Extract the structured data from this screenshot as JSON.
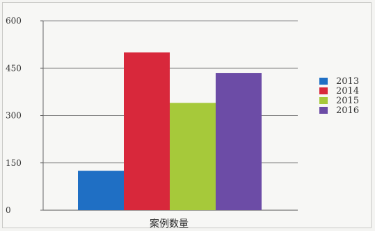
{
  "chart_data": {
    "type": "bar",
    "categories": [
      "案例数量"
    ],
    "series": [
      {
        "name": "2013",
        "values": [
          125
        ],
        "color": "#1f6fc4"
      },
      {
        "name": "2014",
        "values": [
          500
        ],
        "color": "#d8283b"
      },
      {
        "name": "2015",
        "values": [
          340
        ],
        "color": "#a6c93a"
      },
      {
        "name": "2016",
        "values": [
          435
        ],
        "color": "#6c4ca6"
      }
    ],
    "yticks": [
      "0",
      "150",
      "300",
      "450",
      "600"
    ],
    "ylim": [
      0,
      600
    ],
    "grid": true,
    "legend": "right"
  }
}
